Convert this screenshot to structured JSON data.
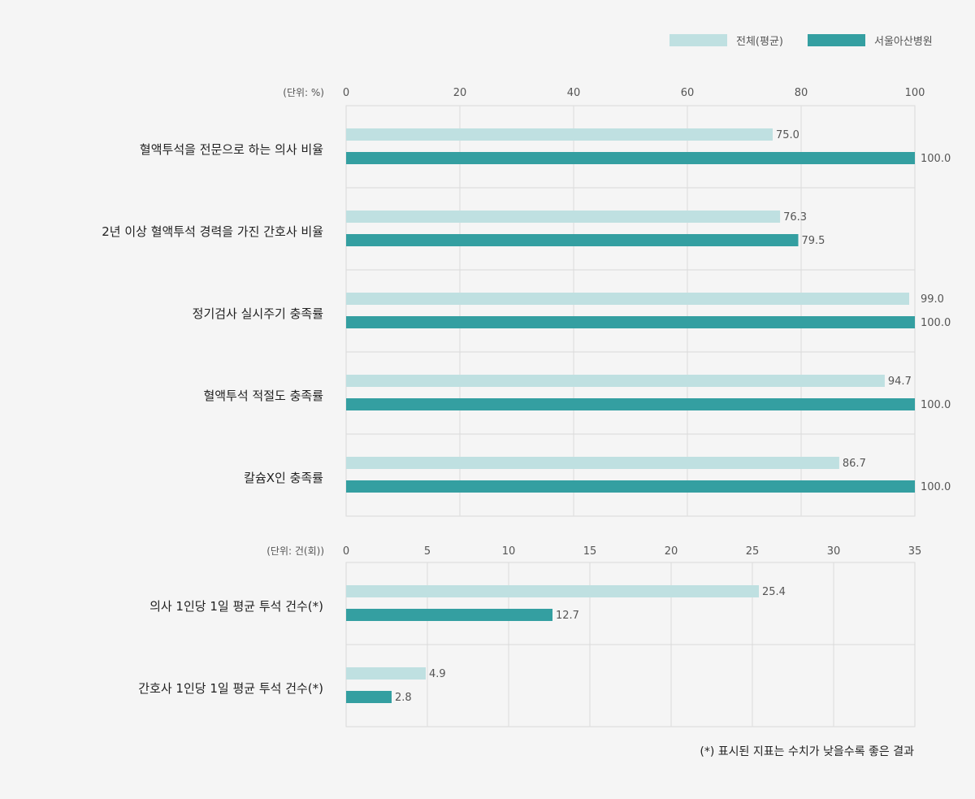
{
  "legend": [
    {
      "label": "전체(평균)",
      "color": "#bfe0e1"
    },
    {
      "label": "서울아산병원",
      "color": "#349fa1"
    }
  ],
  "footnote": "(*) 표시된 지표는 수치가 낮을수록 좋은 결과",
  "chart_data": [
    {
      "type": "bar",
      "orientation": "horizontal",
      "unit_label": "(단위: %)",
      "xlim": [
        0,
        100
      ],
      "ticks": [
        0,
        20,
        40,
        60,
        80,
        100
      ],
      "grid": true,
      "categories": [
        "혈액투석을 전문으로 하는 의사 비율",
        "2년 이상 혈액투석 경력을 가진 간호사 비율",
        "정기검사 실시주기 충족률",
        "혈액투석 적절도 충족률",
        "칼슘X인 충족률"
      ],
      "series": [
        {
          "name": "전체(평균)",
          "color": "#bfe0e1",
          "values": [
            75.0,
            76.3,
            99.0,
            94.7,
            86.7
          ],
          "labels": [
            "75.0",
            "76.3",
            "99.0",
            "94.7",
            "86.7"
          ]
        },
        {
          "name": "서울아산병원",
          "color": "#349fa1",
          "values": [
            100.0,
            79.5,
            100.0,
            100.0,
            100.0
          ],
          "labels": [
            "100.0",
            "79.5",
            "100.0",
            "100.0",
            "100.0"
          ]
        }
      ]
    },
    {
      "type": "bar",
      "orientation": "horizontal",
      "unit_label": "(단위: 건(회))",
      "xlim": [
        0,
        35
      ],
      "ticks": [
        0,
        5,
        10,
        15,
        20,
        25,
        30,
        35
      ],
      "grid": true,
      "categories": [
        "의사 1인당 1일 평균 투석 건수(*)",
        "간호사 1인당 1일 평균 투석 건수(*)"
      ],
      "series": [
        {
          "name": "전체(평균)",
          "color": "#bfe0e1",
          "values": [
            25.4,
            4.9
          ],
          "labels": [
            "25.4",
            "4.9"
          ]
        },
        {
          "name": "서울아산병원",
          "color": "#349fa1",
          "values": [
            12.7,
            2.8
          ],
          "labels": [
            "12.7",
            "2.8"
          ]
        }
      ]
    }
  ]
}
